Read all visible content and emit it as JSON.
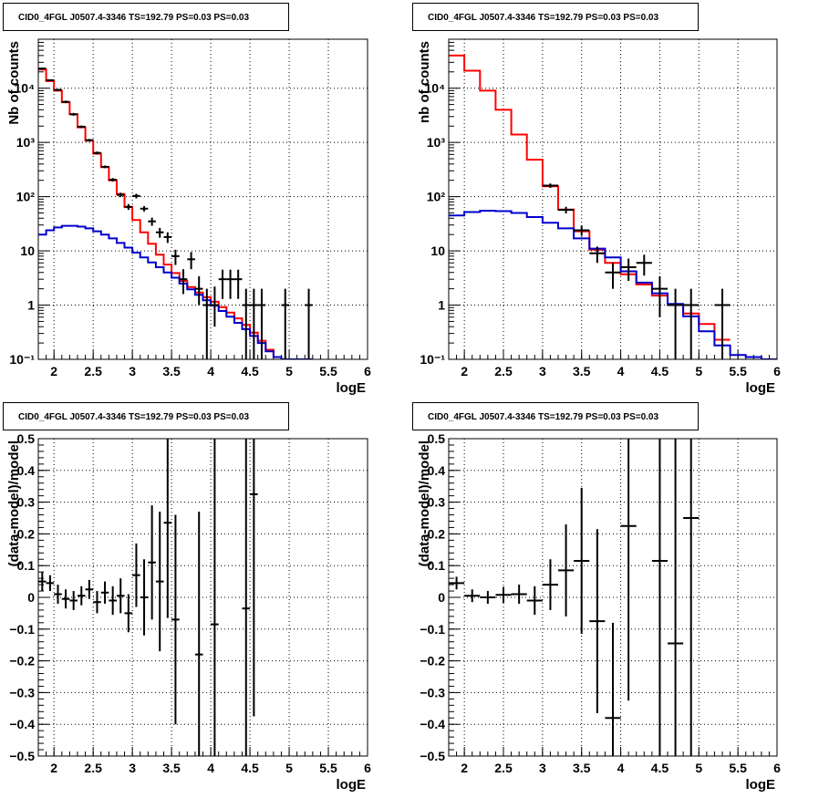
{
  "chart_data": [
    {
      "type": "histogram",
      "title": "CID0_4FGL J0507.4-3346 TS=192.79 PS=0.03 PS=0.03",
      "xlabel": "logE",
      "ylabel": "Nb of counts",
      "xlim": [
        1.8,
        6.0
      ],
      "ylim": [
        0.1,
        80000
      ],
      "log_y": true,
      "grid": true,
      "x_ticks": [
        "2",
        "2.5",
        "3",
        "3.5",
        "4",
        "4.5",
        "5",
        "5.5",
        "6"
      ],
      "y_ticks": [
        [
          "10⁻¹",
          0.1
        ],
        [
          "1",
          1
        ],
        [
          "10",
          10
        ],
        [
          "10²",
          100
        ],
        [
          "10³",
          1000
        ],
        [
          "10⁴",
          10000
        ]
      ],
      "series": [
        {
          "color": "#ff0000",
          "kind": "step",
          "bin_edges_start": 1.8,
          "bin_width": 0.1,
          "values": [
            22000,
            13500,
            9000,
            5500,
            3300,
            1900,
            1080,
            620,
            350,
            200,
            112,
            64,
            37,
            22,
            13.5,
            8.5,
            5.6,
            3.9,
            2.8,
            2.15,
            1.7,
            1.4,
            1.15,
            0.92,
            0.73,
            0.57,
            0.43,
            0.31,
            0.22,
            0.15,
            0.11,
            0.095,
            0.09,
            0.09,
            0.09
          ]
        },
        {
          "color": "#0000cc",
          "kind": "step",
          "bin_edges_start": 1.8,
          "bin_width": 0.1,
          "values": [
            20,
            24,
            27,
            29,
            29,
            28,
            26,
            23,
            20,
            17,
            14,
            11.5,
            9.3,
            7.6,
            6.1,
            5.0,
            4.0,
            3.2,
            2.5,
            1.95,
            1.55,
            1.23,
            0.98,
            0.78,
            0.61,
            0.47,
            0.36,
            0.27,
            0.2,
            0.14,
            0.11,
            0.095,
            0.09,
            0.09,
            0.09
          ]
        }
      ],
      "points": [
        {
          "x": 1.85,
          "y": 23000,
          "ylo": 22000,
          "yhi": 24000,
          "xw": 0.05
        },
        {
          "x": 1.95,
          "y": 14000,
          "ylo": 13400,
          "yhi": 14600,
          "xw": 0.05
        },
        {
          "x": 2.05,
          "y": 9300,
          "ylo": 8900,
          "yhi": 9700,
          "xw": 0.05
        },
        {
          "x": 2.15,
          "y": 5600,
          "ylo": 5300,
          "yhi": 5900,
          "xw": 0.05
        },
        {
          "x": 2.25,
          "y": 3300,
          "ylo": 3100,
          "yhi": 3500,
          "xw": 0.05
        },
        {
          "x": 2.35,
          "y": 1950,
          "ylo": 1850,
          "yhi": 2050,
          "xw": 0.05
        },
        {
          "x": 2.45,
          "y": 1100,
          "ylo": 1040,
          "yhi": 1160,
          "xw": 0.05
        },
        {
          "x": 2.55,
          "y": 640,
          "ylo": 600,
          "yhi": 680,
          "xw": 0.05
        },
        {
          "x": 2.65,
          "y": 355,
          "ylo": 335,
          "yhi": 375,
          "xw": 0.05
        },
        {
          "x": 2.75,
          "y": 205,
          "ylo": 190,
          "yhi": 220,
          "xw": 0.05
        },
        {
          "x": 2.85,
          "y": 108,
          "ylo": 98,
          "yhi": 118,
          "xw": 0.05
        },
        {
          "x": 2.95,
          "y": 65,
          "ylo": 57,
          "yhi": 73,
          "xw": 0.05
        },
        {
          "x": 3.05,
          "y": 103,
          "ylo": 93,
          "yhi": 113,
          "xw": 0.05
        },
        {
          "x": 3.15,
          "y": 60,
          "ylo": 53,
          "yhi": 67,
          "xw": 0.05
        },
        {
          "x": 3.25,
          "y": 35,
          "ylo": 29,
          "yhi": 41,
          "xw": 0.05
        },
        {
          "x": 3.35,
          "y": 22,
          "ylo": 17.5,
          "yhi": 26.5,
          "xw": 0.05
        },
        {
          "x": 3.45,
          "y": 18,
          "ylo": 14,
          "yhi": 22,
          "xw": 0.05
        },
        {
          "x": 3.55,
          "y": 8,
          "ylo": 5.5,
          "yhi": 10.5,
          "xw": 0.05
        },
        {
          "x": 3.65,
          "y": 3,
          "ylo": 1.6,
          "yhi": 4.6,
          "xw": 0.05
        },
        {
          "x": 3.75,
          "y": 7,
          "ylo": 4.6,
          "yhi": 9.5,
          "xw": 0.05
        },
        {
          "x": 3.85,
          "y": 2,
          "ylo": 1.0,
          "yhi": 3.4,
          "xw": 0.05
        },
        {
          "x": 3.95,
          "y": 1,
          "ylo": 0.1,
          "yhi": 2.0,
          "xw": 0.05
        },
        {
          "x": 4.05,
          "y": 1,
          "ylo": 0.4,
          "yhi": 2.2,
          "xw": 0.05
        },
        {
          "x": 4.15,
          "y": 3,
          "ylo": 1.3,
          "yhi": 4.5,
          "xw": 0.05
        },
        {
          "x": 4.25,
          "y": 3,
          "ylo": 1.3,
          "yhi": 4.5,
          "xw": 0.05
        },
        {
          "x": 4.35,
          "y": 3,
          "ylo": 1.3,
          "yhi": 4.5,
          "xw": 0.05
        },
        {
          "x": 4.45,
          "y": 1,
          "ylo": 0.1,
          "yhi": 2.0,
          "xw": 0.05
        },
        {
          "x": 4.55,
          "y": 1,
          "ylo": 0.1,
          "yhi": 2.0,
          "xw": 0.05
        },
        {
          "x": 4.65,
          "y": 1,
          "ylo": 0.1,
          "yhi": 2.0,
          "xw": 0.05
        },
        {
          "x": 4.95,
          "y": 1,
          "ylo": 0.1,
          "yhi": 2.0,
          "xw": 0.05
        },
        {
          "x": 5.25,
          "y": 1,
          "ylo": 0.1,
          "yhi": 2.0,
          "xw": 0.05
        }
      ]
    },
    {
      "type": "histogram",
      "title": "CID0_4FGL J0507.4-3346 TS=192.79 PS=0.03 PS=0.03",
      "xlabel": "logE",
      "ylabel": "nb of counts",
      "xlim": [
        1.8,
        6.0
      ],
      "ylim": [
        0.1,
        80000
      ],
      "log_y": true,
      "grid": true,
      "x_ticks": [
        "2",
        "2.5",
        "3",
        "3.5",
        "4",
        "4.5",
        "5",
        "5.5",
        "6"
      ],
      "y_ticks": [
        [
          "10⁻¹",
          0.1
        ],
        [
          "1",
          1
        ],
        [
          "10",
          10
        ],
        [
          "10²",
          100
        ],
        [
          "10³",
          1000
        ],
        [
          "10⁴",
          10000
        ]
      ],
      "series": [
        {
          "color": "#ff0000",
          "kind": "step",
          "bin_edges_start": 1.8,
          "bin_width": 0.2,
          "values": [
            40000,
            21000,
            9000,
            4000,
            1400,
            480,
            155,
            58,
            23,
            10.5,
            6.0,
            3.7,
            2.4,
            1.5,
            1.0,
            0.7,
            0.45,
            0.23
          ]
        },
        {
          "color": "#0000cc",
          "kind": "step",
          "bin_edges_start": 1.8,
          "bin_width": 0.2,
          "values": [
            45,
            52,
            55,
            54,
            50,
            42,
            33,
            26,
            17,
            11,
            7.6,
            4.2,
            2.6,
            1.65,
            1.05,
            0.62,
            0.33,
            0.18,
            0.12,
            0.11,
            0.1
          ]
        }
      ],
      "points": [
        {
          "x": 3.1,
          "y": 160,
          "ylo": 145,
          "yhi": 175,
          "xw": 0.1
        },
        {
          "x": 3.3,
          "y": 57,
          "ylo": 49,
          "yhi": 65,
          "xw": 0.1
        },
        {
          "x": 3.5,
          "y": 24,
          "ylo": 19,
          "yhi": 29,
          "xw": 0.1
        },
        {
          "x": 3.7,
          "y": 9,
          "ylo": 6,
          "yhi": 12,
          "xw": 0.1
        },
        {
          "x": 3.9,
          "y": 4,
          "ylo": 2,
          "yhi": 6,
          "xw": 0.1
        },
        {
          "x": 4.1,
          "y": 5,
          "ylo": 2.8,
          "yhi": 7.2,
          "xw": 0.1
        },
        {
          "x": 4.3,
          "y": 6,
          "ylo": 3.5,
          "yhi": 8.5,
          "xw": 0.1
        },
        {
          "x": 4.5,
          "y": 2,
          "ylo": 0.6,
          "yhi": 3.4,
          "xw": 0.1
        },
        {
          "x": 4.7,
          "y": 1,
          "ylo": 0.1,
          "yhi": 2.0,
          "xw": 0.1
        },
        {
          "x": 4.9,
          "y": 1,
          "ylo": 0.1,
          "yhi": 2.0,
          "xw": 0.1
        },
        {
          "x": 5.3,
          "y": 1,
          "ylo": 0.1,
          "yhi": 2.0,
          "xw": 0.1
        }
      ]
    },
    {
      "type": "scatter",
      "title": "CID0_4FGL J0507.4-3346 TS=192.79 PS=0.03 PS=0.03",
      "xlabel": "logE",
      "ylabel": "(data-model)/model",
      "xlim": [
        1.8,
        6.0
      ],
      "ylim": [
        -0.5,
        0.5
      ],
      "grid": true,
      "x_ticks": [
        "2",
        "2.5",
        "3",
        "3.5",
        "4",
        "4.5",
        "5",
        "5.5",
        "6"
      ],
      "y_ticks": [
        "−0.5",
        "−0.4",
        "−0.3",
        "−0.2",
        "−0.1",
        "0",
        "0.1",
        "0.2",
        "0.3",
        "0.4",
        "0.5"
      ],
      "points": [
        {
          "x": 1.85,
          "y": 0.05,
          "err": 0.03,
          "xw": 0.05
        },
        {
          "x": 1.95,
          "y": 0.045,
          "err": 0.025,
          "xw": 0.05
        },
        {
          "x": 2.05,
          "y": 0.01,
          "err": 0.03,
          "xw": 0.05
        },
        {
          "x": 2.15,
          "y": -0.005,
          "err": 0.03,
          "xw": 0.05
        },
        {
          "x": 2.25,
          "y": -0.01,
          "err": 0.03,
          "xw": 0.05
        },
        {
          "x": 2.35,
          "y": 0.005,
          "err": 0.03,
          "xw": 0.05
        },
        {
          "x": 2.45,
          "y": 0.025,
          "err": 0.03,
          "xw": 0.05
        },
        {
          "x": 2.55,
          "y": -0.015,
          "err": 0.035,
          "xw": 0.05
        },
        {
          "x": 2.65,
          "y": 0.015,
          "err": 0.035,
          "xw": 0.05
        },
        {
          "x": 2.75,
          "y": -0.01,
          "err": 0.045,
          "xw": 0.05
        },
        {
          "x": 2.85,
          "y": 0.005,
          "err": 0.055,
          "xw": 0.05
        },
        {
          "x": 2.95,
          "y": -0.05,
          "err": 0.06,
          "xw": 0.05
        },
        {
          "x": 3.05,
          "y": 0.07,
          "err": 0.1,
          "xw": 0.05
        },
        {
          "x": 3.15,
          "y": 0.0,
          "err": 0.12,
          "xw": 0.05
        },
        {
          "x": 3.25,
          "y": 0.11,
          "err": 0.18,
          "xw": 0.05
        },
        {
          "x": 3.35,
          "y": 0.05,
          "err": 0.22,
          "xw": 0.05
        },
        {
          "x": 3.45,
          "y": 0.235,
          "err": 0.3,
          "xw": 0.05
        },
        {
          "x": 3.55,
          "y": -0.07,
          "err": 0.33,
          "xw": 0.05
        },
        {
          "x": 3.85,
          "y": -0.18,
          "err": 0.45,
          "xw": 0.05
        },
        {
          "x": 4.05,
          "y": -0.085,
          "err": 0.65,
          "xw": 0.05
        },
        {
          "x": 4.45,
          "y": -0.035,
          "err": 0.65,
          "xw": 0.05
        },
        {
          "x": 4.55,
          "y": 0.325,
          "err": 0.7,
          "xw": 0.05
        }
      ]
    },
    {
      "type": "scatter",
      "title": "CID0_4FGL J0507.4-3346 TS=192.79 PS=0.03 PS=0.03",
      "xlabel": "logE",
      "ylabel": "(data-model)/model",
      "xlim": [
        1.8,
        6.0
      ],
      "ylim": [
        -0.5,
        0.5
      ],
      "grid": true,
      "x_ticks": [
        "2",
        "2.5",
        "3",
        "3.5",
        "4",
        "4.5",
        "5",
        "5.5",
        "6"
      ],
      "y_ticks": [
        "−0.5",
        "−0.4",
        "−0.3",
        "−0.2",
        "−0.1",
        "0",
        "0.1",
        "0.2",
        "0.3",
        "0.4",
        "0.5"
      ],
      "points": [
        {
          "x": 1.9,
          "y": 0.045,
          "err": 0.02,
          "xw": 0.1
        },
        {
          "x": 2.1,
          "y": 0.005,
          "err": 0.02,
          "xw": 0.1
        },
        {
          "x": 2.3,
          "y": 0.0,
          "err": 0.02,
          "xw": 0.1
        },
        {
          "x": 2.5,
          "y": 0.008,
          "err": 0.025,
          "xw": 0.1
        },
        {
          "x": 2.7,
          "y": 0.01,
          "err": 0.03,
          "xw": 0.1
        },
        {
          "x": 2.9,
          "y": -0.01,
          "err": 0.045,
          "xw": 0.1
        },
        {
          "x": 3.1,
          "y": 0.04,
          "err": 0.08,
          "xw": 0.1
        },
        {
          "x": 3.3,
          "y": 0.085,
          "err": 0.145,
          "xw": 0.1
        },
        {
          "x": 3.5,
          "y": 0.115,
          "err": 0.23,
          "xw": 0.1
        },
        {
          "x": 3.7,
          "y": -0.075,
          "err": 0.29,
          "xw": 0.1
        },
        {
          "x": 3.9,
          "y": -0.38,
          "err": 0.3,
          "xw": 0.1
        },
        {
          "x": 4.1,
          "y": 0.225,
          "err": 0.55,
          "xw": 0.1
        },
        {
          "x": 4.5,
          "y": 0.115,
          "err": 0.9,
          "xw": 0.1
        },
        {
          "x": 4.7,
          "y": -0.145,
          "err": 0.9,
          "xw": 0.1
        },
        {
          "x": 4.9,
          "y": 0.25,
          "err": 0.9,
          "xw": 0.1
        }
      ]
    }
  ]
}
